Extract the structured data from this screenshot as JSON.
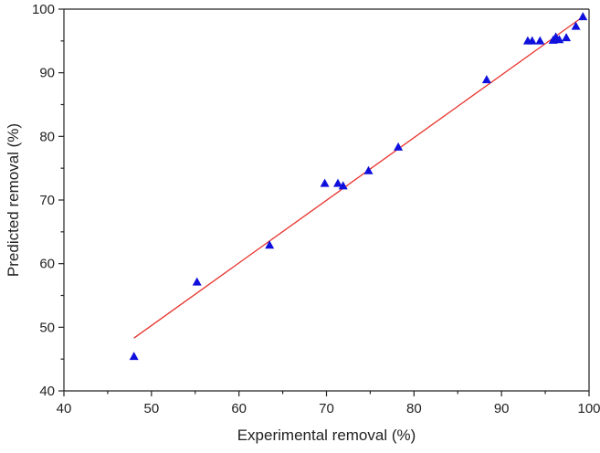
{
  "chart_data": {
    "type": "scatter",
    "title": "",
    "xlabel": "Experimental removal (%)",
    "ylabel": "Predicted removal (%)",
    "xlim": [
      40,
      100
    ],
    "ylim": [
      40,
      100
    ],
    "x_ticks": [
      40,
      50,
      60,
      70,
      80,
      90,
      100
    ],
    "y_ticks": [
      40,
      50,
      60,
      70,
      80,
      90,
      100
    ],
    "grid": false,
    "legend": "none",
    "marker": "triangle",
    "marker_color": "#1010dd",
    "fit_line_color": "#e8322b",
    "series": [
      {
        "points": [
          {
            "x": 48.0,
            "y": 45.4
          },
          {
            "x": 55.2,
            "y": 57.1
          },
          {
            "x": 63.5,
            "y": 62.9
          },
          {
            "x": 69.8,
            "y": 72.6
          },
          {
            "x": 71.3,
            "y": 72.6
          },
          {
            "x": 71.9,
            "y": 72.2
          },
          {
            "x": 74.8,
            "y": 74.6
          },
          {
            "x": 78.2,
            "y": 78.3
          },
          {
            "x": 88.3,
            "y": 88.9
          },
          {
            "x": 93.0,
            "y": 95.0
          },
          {
            "x": 93.5,
            "y": 95.0
          },
          {
            "x": 94.4,
            "y": 95.0
          },
          {
            "x": 95.9,
            "y": 95.1
          },
          {
            "x": 96.2,
            "y": 95.6
          },
          {
            "x": 96.6,
            "y": 95.2
          },
          {
            "x": 97.4,
            "y": 95.5
          },
          {
            "x": 98.5,
            "y": 97.3
          },
          {
            "x": 99.3,
            "y": 98.8
          }
        ]
      }
    ],
    "fit_line": {
      "x": [
        48.0,
        99.3
      ],
      "y": [
        48.3,
        98.8
      ]
    }
  }
}
